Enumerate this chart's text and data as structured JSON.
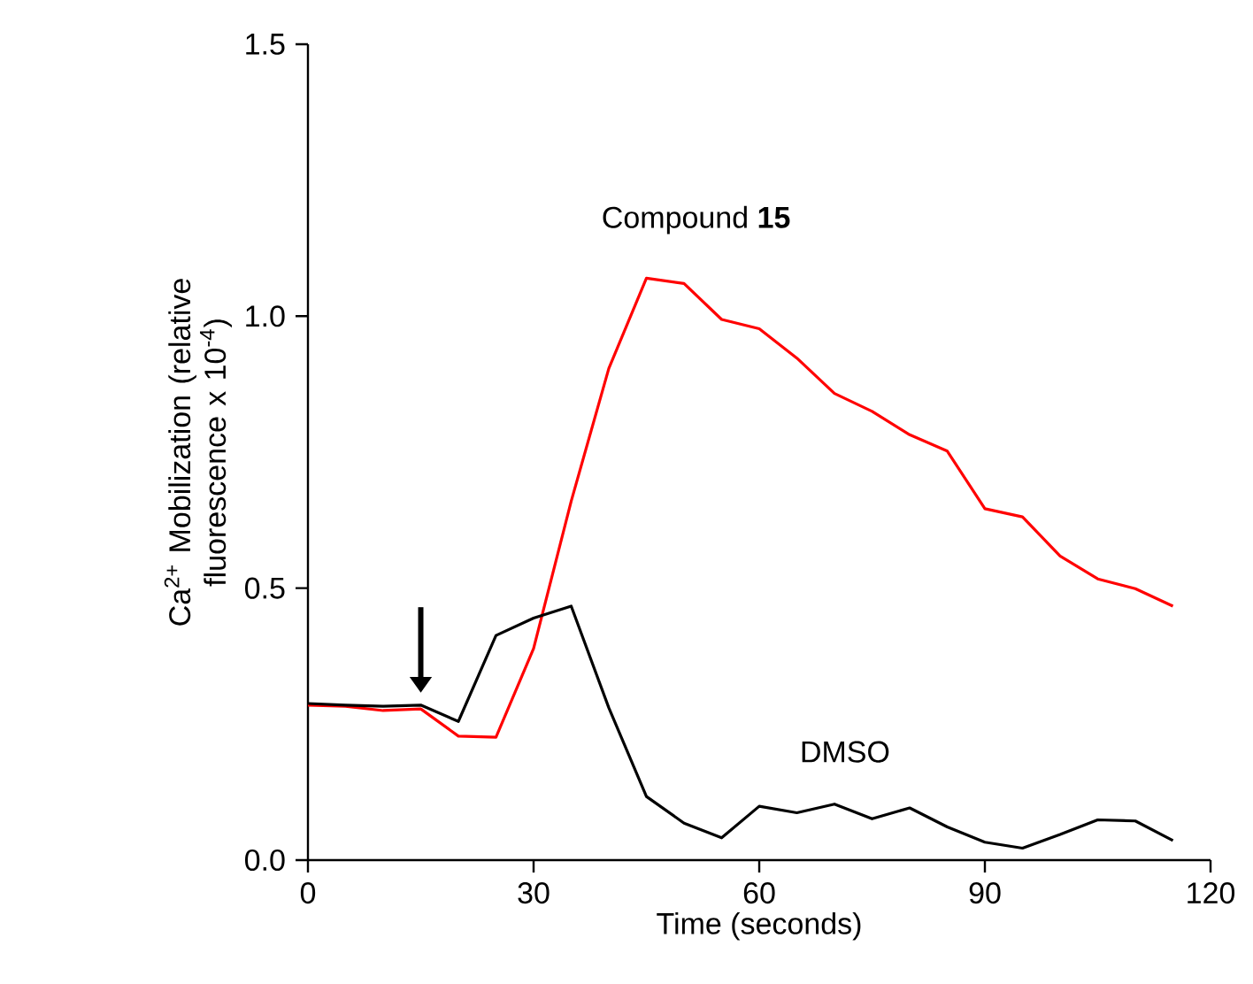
{
  "chart_data": {
    "type": "line",
    "xlabel": "Time (seconds)",
    "ylabel": "Ca$^{2+}$ Mobilization (relative fluorescence x 10$^{-4}$)",
    "x": [
      0,
      5,
      10,
      15,
      20,
      25,
      30,
      35,
      40,
      45,
      50,
      55,
      60,
      65,
      70,
      75,
      80,
      85,
      90,
      95,
      100,
      105,
      110,
      115
    ],
    "series": [
      {
        "name": "Compound **15**",
        "color": "#ff0000",
        "values": [
          0.285,
          0.283,
          0.275,
          0.278,
          0.228,
          0.226,
          0.389,
          0.66,
          0.904,
          1.07,
          1.06,
          0.994,
          0.977,
          0.923,
          0.858,
          0.825,
          0.782,
          0.752,
          0.646,
          0.631,
          0.559,
          0.517,
          0.499,
          0.467
        ]
      },
      {
        "name": "DMSO",
        "color": "#000000",
        "values": [
          0.288,
          0.285,
          0.283,
          0.285,
          0.255,
          0.413,
          0.445,
          0.467,
          0.28,
          0.117,
          0.068,
          0.041,
          0.099,
          0.087,
          0.103,
          0.076,
          0.096,
          0.061,
          0.033,
          0.022,
          0.047,
          0.074,
          0.072,
          0.036
        ]
      }
    ],
    "xlim": [
      0,
      120
    ],
    "xticks": [
      0,
      30,
      60,
      90,
      120
    ],
    "ylim": [
      0,
      1.5
    ],
    "yticks": [
      {
        "value": 0,
        "label": "0.0"
      },
      {
        "value": 0.5,
        "label": "0.5"
      },
      {
        "value": 1,
        "label": "1.0"
      },
      {
        "value": 1.5,
        "label": "1.5"
      }
    ],
    "grid": false,
    "legend": false,
    "marker": "none",
    "line_style": "solid"
  }
}
